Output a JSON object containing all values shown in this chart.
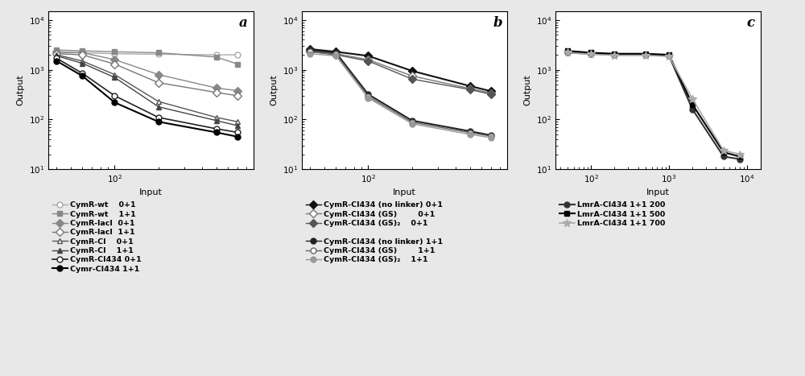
{
  "panel_a": {
    "label": "a",
    "xlim": [
      35,
      900
    ],
    "ylim": [
      10,
      15000
    ],
    "xlabel": "Input",
    "ylabel": "Output",
    "series": [
      {
        "name": "CymR-wt    0+1",
        "x": [
          40,
          60,
          100,
          200,
          500,
          700
        ],
        "y": [
          2200,
          2200,
          2100,
          2050,
          2000,
          2000
        ],
        "color": "#aaaaaa",
        "marker": "o",
        "marker_face": "white",
        "linewidth": 1.0,
        "markersize": 5
      },
      {
        "name": "CymR-wt    1+1",
        "x": [
          40,
          60,
          100,
          200,
          500,
          700
        ],
        "y": [
          2500,
          2400,
          2300,
          2200,
          1800,
          1300
        ],
        "color": "#888888",
        "marker": "s",
        "marker_face": "#888888",
        "linewidth": 1.0,
        "markersize": 5
      },
      {
        "name": "CymR-lacI  0+1",
        "x": [
          40,
          60,
          100,
          200,
          500,
          700
        ],
        "y": [
          2300,
          2200,
          1600,
          800,
          430,
          380
        ],
        "color": "#888888",
        "marker": "D",
        "marker_face": "#888888",
        "linewidth": 1.0,
        "markersize": 5
      },
      {
        "name": "CymR-lacI  1+1",
        "x": [
          40,
          60,
          100,
          200,
          500,
          700
        ],
        "y": [
          2100,
          2000,
          1300,
          550,
          350,
          300
        ],
        "color": "#777777",
        "marker": "D",
        "marker_face": "white",
        "linewidth": 1.0,
        "markersize": 5
      },
      {
        "name": "CymR-CI    0+1",
        "x": [
          40,
          60,
          100,
          200,
          500,
          700
        ],
        "y": [
          2000,
          1500,
          800,
          230,
          110,
          90
        ],
        "color": "#555555",
        "marker": "^",
        "marker_face": "white",
        "linewidth": 1.0,
        "markersize": 5
      },
      {
        "name": "CymR-CI    1+1",
        "x": [
          40,
          60,
          100,
          200,
          500,
          700
        ],
        "y": [
          1900,
          1350,
          700,
          180,
          95,
          75
        ],
        "color": "#444444",
        "marker": "^",
        "marker_face": "#444444",
        "linewidth": 1.0,
        "markersize": 5
      },
      {
        "name": "CymR-CI434 0+1",
        "x": [
          40,
          60,
          100,
          200,
          500,
          700
        ],
        "y": [
          1700,
          850,
          300,
          110,
          65,
          55
        ],
        "color": "#222222",
        "marker": "o",
        "marker_face": "white",
        "linewidth": 1.2,
        "markersize": 5
      },
      {
        "name": "Cymr-CI434 1+1",
        "x": [
          40,
          60,
          100,
          200,
          500,
          700
        ],
        "y": [
          1500,
          750,
          220,
          90,
          55,
          45
        ],
        "color": "#000000",
        "marker": "o",
        "marker_face": "#000000",
        "linewidth": 1.5,
        "markersize": 5
      }
    ],
    "legend": [
      {
        "name": "CymR-wt    0+1",
        "color": "#aaaaaa",
        "marker": "o",
        "marker_face": "white"
      },
      {
        "name": "CymR-wt    1+1",
        "color": "#888888",
        "marker": "s",
        "marker_face": "#888888"
      },
      {
        "name": "CymR-lacI  0+1",
        "color": "#888888",
        "marker": "D",
        "marker_face": "#888888"
      },
      {
        "name": "CymR-lacI  1+1",
        "color": "#777777",
        "marker": "D",
        "marker_face": "white"
      },
      {
        "name": "CymR-CI    0+1",
        "color": "#555555",
        "marker": "^",
        "marker_face": "white"
      },
      {
        "name": "CymR-CI    1+1",
        "color": "#444444",
        "marker": "^",
        "marker_face": "#444444"
      },
      {
        "name": "CymR-CI434 0+1",
        "color": "#222222",
        "marker": "o",
        "marker_face": "white"
      },
      {
        "name": "Cymr-CI434 1+1",
        "color": "#000000",
        "marker": "o",
        "marker_face": "#000000"
      }
    ]
  },
  "panel_b": {
    "label": "b",
    "xlim": [
      35,
      900
    ],
    "ylim": [
      10,
      15000
    ],
    "xlabel": "Input",
    "ylabel": "Output",
    "series": [
      {
        "name": "CymR-CI434 (no linker) 0+1",
        "x": [
          40,
          60,
          100,
          200,
          500,
          700
        ],
        "y": [
          2600,
          2300,
          1900,
          950,
          470,
          370
        ],
        "color": "#111111",
        "marker": "D",
        "marker_face": "#111111",
        "linewidth": 1.5,
        "markersize": 5
      },
      {
        "name": "CymR-CI434 (GS)        0+1",
        "x": [
          40,
          60,
          100,
          200,
          500,
          700
        ],
        "y": [
          2400,
          2100,
          1600,
          750,
          420,
          340
        ],
        "color": "#777777",
        "marker": "D",
        "marker_face": "white",
        "linewidth": 1.0,
        "markersize": 5
      },
      {
        "name": "CymR-CI434 (GS)₂    0+1",
        "x": [
          40,
          60,
          100,
          200,
          500,
          700
        ],
        "y": [
          2300,
          2000,
          1500,
          650,
          400,
          320
        ],
        "color": "#555555",
        "marker": "D",
        "marker_face": "#555555",
        "linewidth": 1.0,
        "markersize": 5
      },
      {
        "name": "CymR-CI434 (no linker) 1+1",
        "x": [
          40,
          60,
          100,
          200,
          500,
          700
        ],
        "y": [
          2500,
          2200,
          320,
          95,
          58,
          48
        ],
        "color": "#222222",
        "marker": "o",
        "marker_face": "#222222",
        "linewidth": 1.5,
        "markersize": 5
      },
      {
        "name": "CymR-CI434 (GS)        1+1",
        "x": [
          40,
          60,
          100,
          200,
          500,
          700
        ],
        "y": [
          2300,
          2050,
          290,
          88,
          54,
          46
        ],
        "color": "#666666",
        "marker": "o",
        "marker_face": "white",
        "linewidth": 1.0,
        "markersize": 5
      },
      {
        "name": "CymR-CI434 (GS)₂    1+1",
        "x": [
          40,
          60,
          100,
          200,
          500,
          700
        ],
        "y": [
          2100,
          1900,
          270,
          82,
          50,
          43
        ],
        "color": "#999999",
        "marker": "o",
        "marker_face": "#999999",
        "linewidth": 1.0,
        "markersize": 5
      }
    ],
    "legend_group1": [
      {
        "name": "CymR-CI434 (no linker) 0+1",
        "color": "#111111",
        "marker": "D",
        "marker_face": "#111111"
      },
      {
        "name": "CymR-CI434 (GS)        0+1",
        "color": "#777777",
        "marker": "D",
        "marker_face": "white"
      },
      {
        "name": "CymR-CI434 (GS)₂    0+1",
        "color": "#555555",
        "marker": "D",
        "marker_face": "#555555"
      }
    ],
    "legend_group2": [
      {
        "name": "CymR-CI434 (no linker) 1+1",
        "color": "#222222",
        "marker": "o",
        "marker_face": "#222222"
      },
      {
        "name": "CymR-CI434 (GS)        1+1",
        "color": "#666666",
        "marker": "o",
        "marker_face": "white"
      },
      {
        "name": "CymR-CI434 (GS)₂    1+1",
        "color": "#999999",
        "marker": "o",
        "marker_face": "#999999"
      }
    ]
  },
  "panel_c": {
    "label": "c",
    "xlim": [
      35,
      15000
    ],
    "ylim": [
      10,
      15000
    ],
    "xlabel": "Input",
    "ylabel": "Output",
    "series": [
      {
        "name": "LmrA-CI434 1+1 200",
        "x": [
          50,
          100,
          200,
          500,
          1000,
          2000,
          5000,
          8000
        ],
        "y": [
          2200,
          2100,
          2000,
          2000,
          1900,
          160,
          18,
          16
        ],
        "color": "#333333",
        "marker": "o",
        "marker_face": "#333333",
        "linewidth": 1.5,
        "markersize": 5
      },
      {
        "name": "LmrA-CI434 1+1 500",
        "x": [
          50,
          100,
          200,
          500,
          1000,
          2000,
          5000,
          8000
        ],
        "y": [
          2400,
          2200,
          2100,
          2100,
          2000,
          200,
          22,
          18
        ],
        "color": "#000000",
        "marker": "s",
        "marker_face": "#000000",
        "linewidth": 1.5,
        "markersize": 5
      },
      {
        "name": "LmrA-CI434 1+1 700",
        "x": [
          50,
          100,
          200,
          500,
          1000,
          2000,
          5000,
          8000
        ],
        "y": [
          2200,
          2050,
          1950,
          1950,
          1850,
          260,
          24,
          20
        ],
        "color": "#aaaaaa",
        "marker": "*",
        "marker_face": "#aaaaaa",
        "linewidth": 1.2,
        "markersize": 7
      }
    ],
    "legend": [
      {
        "name": "LmrA-CI434 1+1 200",
        "color": "#333333",
        "marker": "o",
        "marker_face": "#333333"
      },
      {
        "name": "LmrA-CI434 1+1 500",
        "color": "#000000",
        "marker": "s",
        "marker_face": "#000000"
      },
      {
        "name": "LmrA-CI434 1+1 700",
        "color": "#aaaaaa",
        "marker": "*",
        "marker_face": "#aaaaaa"
      }
    ]
  },
  "fig_background": "#e8e8e8",
  "axes_background": "#ffffff"
}
